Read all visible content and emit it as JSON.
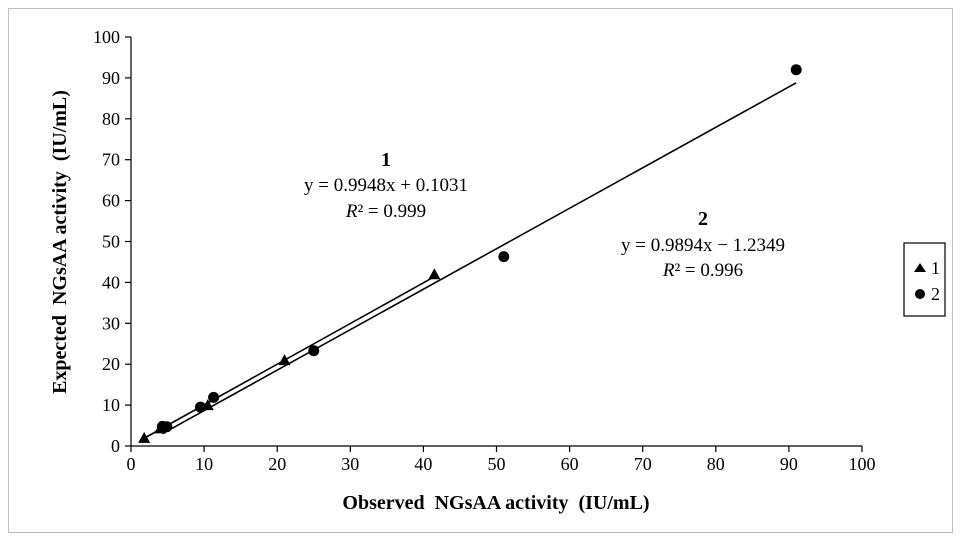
{
  "chart_data": {
    "type": "scatter",
    "xlabel": "Observed  NGsAA activity  (IU/mL)",
    "ylabel": "Expected  NGsAA activity  (IU/mL)",
    "xlim": [
      0,
      100
    ],
    "ylim": [
      0,
      100
    ],
    "xticks": [
      "0",
      "10",
      "20",
      "30",
      "40",
      "50",
      "60",
      "70",
      "80",
      "90",
      "100"
    ],
    "yticks": [
      "0",
      "10",
      "20",
      "30",
      "40",
      "50",
      "60",
      "70",
      "80",
      "90",
      "100"
    ],
    "grid": false,
    "legend_position": "right",
    "series": [
      {
        "name": "1",
        "marker": "triangle",
        "points": [
          [
            1.8,
            2.0
          ],
          [
            4.0,
            4.3
          ],
          [
            10.5,
            10.0
          ],
          [
            21.0,
            21.0
          ],
          [
            41.5,
            42.0
          ]
        ],
        "trendline": {
          "slope": 0.9948,
          "intercept": 0.1031,
          "x_range": [
            1.8,
            41.5
          ]
        },
        "label": "1",
        "equation": "y = 0.9948x + 0.1031",
        "r2_label": "R",
        "r2_value": "² = 0.999"
      },
      {
        "name": "2",
        "marker": "circle",
        "points": [
          [
            4.3,
            4.8
          ],
          [
            4.9,
            4.7
          ],
          [
            9.5,
            9.5
          ],
          [
            11.3,
            11.9
          ],
          [
            25.0,
            23.3
          ],
          [
            51.0,
            46.3
          ],
          [
            91.0,
            92.0
          ]
        ],
        "trendline": {
          "slope": 0.9894,
          "intercept": -1.2349,
          "x_range": [
            4.3,
            91.0
          ]
        },
        "label": "2",
        "equation": "y = 0.9894x − 1.2349",
        "r2_label": "R",
        "r2_value": "² = 0.996"
      }
    ],
    "legend": [
      {
        "marker": "triangle",
        "label": "1"
      },
      {
        "marker": "circle",
        "label": "2"
      }
    ]
  }
}
